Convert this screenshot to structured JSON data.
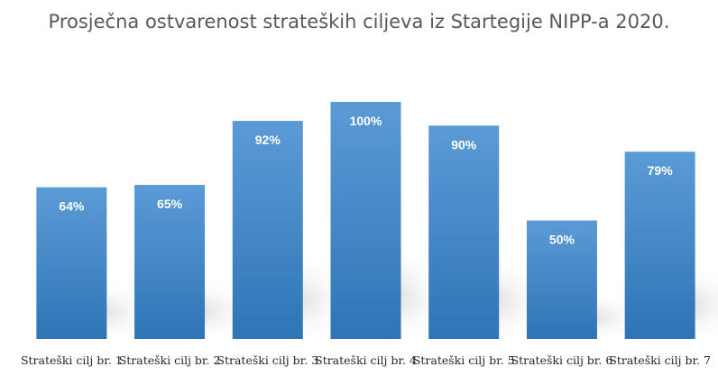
{
  "chart_data": {
    "type": "bar",
    "title": "Prosječna ostvarenost strateških ciljeva iz Startegije NIPP-a 2020.",
    "categories": [
      "Strateški cilj br. 1",
      "Strateški cilj br. 2",
      "Strateški cilj br. 3",
      "Strateški cilj br. 4",
      "Strateški cilj br. 5",
      "Strateški cilj br. 6",
      "Strateški cilj br. 7"
    ],
    "values": [
      64,
      65,
      92,
      100,
      90,
      50,
      79
    ],
    "data_labels": [
      "64%",
      "65%",
      "92%",
      "100%",
      "90%",
      "50%",
      "79%"
    ],
    "unit": "%",
    "xlabel": "",
    "ylabel": "",
    "ylim": [
      0,
      100
    ],
    "grid": false,
    "legend": "none",
    "colors": {
      "bar_top": "#5b9bd5",
      "bar_bottom": "#2e75b6",
      "label": "#ffffff",
      "tick": "#262626",
      "title": "#595959"
    }
  }
}
